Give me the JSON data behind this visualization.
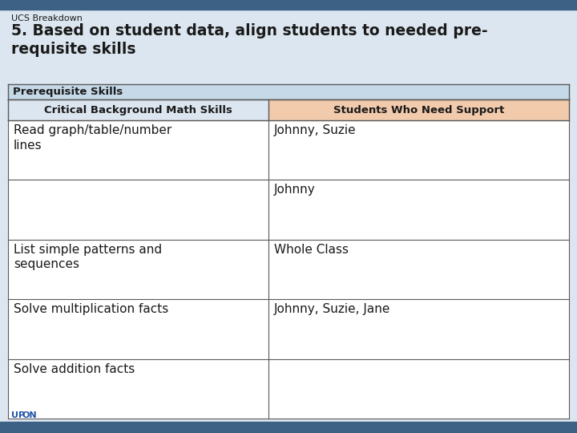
{
  "title_small": "UCS Breakdown",
  "title_large": "5. Based on student data, align students to needed pre-\nrequisite skills",
  "section_header": "Prerequisite Skills",
  "col1_header": "Critical Background Math Skills",
  "col2_header": "Students Who Need Support",
  "rows": [
    [
      "Read graph/table/number\nlines",
      "Johnny, Suzie"
    ],
    [
      "",
      "Johnny"
    ],
    [
      "List simple patterns and\nsequences",
      "Whole Class"
    ],
    [
      "Solve multiplication facts",
      "Johnny, Suzie, Jane"
    ],
    [
      "Solve addition facts",
      ""
    ]
  ],
  "top_bar_color": "#3d6185",
  "bg_color": "#dce6f0",
  "section_header_bg": "#c5d9e8",
  "col_header_bg": "#f2caac",
  "col1_header_bg": "#dce6f0",
  "table_bg": "#ffffff",
  "border_color": "#5a5a5a",
  "text_color": "#1a1a1a",
  "bottom_bar_color": "#3d6185"
}
